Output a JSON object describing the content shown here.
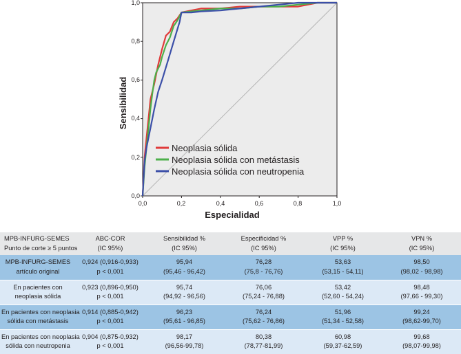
{
  "chart_data": {
    "type": "line",
    "title": "",
    "xlabel": "Especialidad",
    "ylabel": "Sensibilidad",
    "xlim": [
      0,
      1
    ],
    "ylim": [
      0,
      1
    ],
    "x_ticks": [
      "0,0",
      "0,2",
      "0,4",
      "0,6",
      "0,8",
      "1,0"
    ],
    "y_ticks": [
      "0,0",
      "0,2",
      "0,4",
      "0,6",
      "0,8",
      "1,0"
    ],
    "legend_position": "lower-right",
    "series": [
      {
        "name": "Neoplasia sólida",
        "color": "#e03a3a",
        "x": [
          0,
          0.01,
          0.02,
          0.03,
          0.04,
          0.05,
          0.06,
          0.07,
          0.08,
          0.09,
          0.1,
          0.12,
          0.14,
          0.16,
          0.18,
          0.2,
          0.25,
          0.3,
          0.4,
          0.5,
          0.6,
          0.7,
          0.8,
          0.9,
          1.0
        ],
        "y": [
          0,
          0.2,
          0.3,
          0.4,
          0.5,
          0.54,
          0.58,
          0.63,
          0.68,
          0.72,
          0.76,
          0.83,
          0.85,
          0.9,
          0.92,
          0.95,
          0.96,
          0.97,
          0.97,
          0.98,
          0.98,
          0.98,
          0.98,
          1.0,
          1.0
        ]
      },
      {
        "name": "Neoplasia sólida con metástasis",
        "color": "#4caf4a",
        "x": [
          0,
          0.01,
          0.02,
          0.03,
          0.04,
          0.05,
          0.06,
          0.07,
          0.08,
          0.09,
          0.1,
          0.12,
          0.14,
          0.16,
          0.18,
          0.2,
          0.25,
          0.3,
          0.4,
          0.5,
          0.6,
          0.7,
          0.8,
          0.9,
          1.0
        ],
        "y": [
          0,
          0.15,
          0.25,
          0.35,
          0.45,
          0.53,
          0.6,
          0.64,
          0.66,
          0.68,
          0.72,
          0.78,
          0.82,
          0.88,
          0.91,
          0.95,
          0.955,
          0.96,
          0.97,
          0.97,
          0.98,
          0.98,
          0.99,
          1.0,
          1.0
        ]
      },
      {
        "name": "Neoplasia sólida con neutropenia",
        "color": "#3b4fa8",
        "x": [
          0,
          0.01,
          0.02,
          0.04,
          0.06,
          0.08,
          0.1,
          0.13,
          0.16,
          0.19,
          0.2,
          0.25,
          0.3,
          0.4,
          0.5,
          0.6,
          0.7,
          0.8,
          0.9,
          1.0
        ],
        "y": [
          0,
          0.18,
          0.25,
          0.35,
          0.45,
          0.54,
          0.6,
          0.7,
          0.8,
          0.9,
          0.95,
          0.95,
          0.955,
          0.96,
          0.97,
          0.98,
          0.99,
          1.0,
          1.0,
          1.0
        ]
      }
    ]
  },
  "table": {
    "header": {
      "col0": [
        "MPB-INFURG-SEMES",
        "Punto de corte ≥ 5 puntos"
      ],
      "col1": [
        "ABC-COR",
        "(IC 95%)"
      ],
      "col2": [
        "Sensibilidad %",
        "(IC 95%)"
      ],
      "col3": [
        "Especificidad %",
        "(IC 95%)"
      ],
      "col4": [
        "VPP %",
        "(IC 95%)"
      ],
      "col5": [
        "VPN %",
        "(IC 95%)"
      ]
    },
    "rows": [
      {
        "label": [
          "MPB-INFURG-SEMES",
          "artículo original"
        ],
        "abc": [
          "0,924 (0,916-0,933)",
          "p < 0,001"
        ],
        "sens": [
          "95,94",
          "(95,46 - 96,42)"
        ],
        "espec": [
          "76,28",
          "(75,8 - 76,76)"
        ],
        "vpp": [
          "53,63",
          "(53,15 - 54,11)"
        ],
        "vpn": [
          "98,50",
          "(98,02 - 98,98)"
        ]
      },
      {
        "label": [
          "En pacientes con",
          "neoplasia sólida"
        ],
        "abc": [
          "0,923 (0,896-0,950)",
          "p < 0,001"
        ],
        "sens": [
          "95,74",
          "(94,92 - 96,56)"
        ],
        "espec": [
          "76,06",
          "(75,24 - 76,88)"
        ],
        "vpp": [
          "53,42",
          "(52,60 - 54,24)"
        ],
        "vpn": [
          "98,48",
          "(97,66 - 99,30)"
        ]
      },
      {
        "label": [
          "En pacientes con neoplasia",
          "sólida con metástasis"
        ],
        "abc": [
          "0,914 (0,885-0,942)",
          "p < 0,001"
        ],
        "sens": [
          "96,23",
          "(95,61 - 96,85)"
        ],
        "espec": [
          "76,24",
          "(75,62 - 76,86)"
        ],
        "vpp": [
          "51,96",
          "(51,34 - 52,58)"
        ],
        "vpn": [
          "99,24",
          "(98,62-99,70)"
        ]
      },
      {
        "label": [
          "En pacientes con neoplasia",
          "sólida con neutropenia"
        ],
        "abc": [
          "0,904 (0,875-0,932)",
          "p < 0,001"
        ],
        "sens": [
          "98,17",
          "(96,56-99,78)"
        ],
        "espec": [
          "80,38",
          "(78,77-81,99)"
        ],
        "vpp": [
          "60,98",
          "(59,37-62,59)"
        ],
        "vpn": [
          "99,68",
          "(98,07-99,98)"
        ]
      }
    ]
  }
}
